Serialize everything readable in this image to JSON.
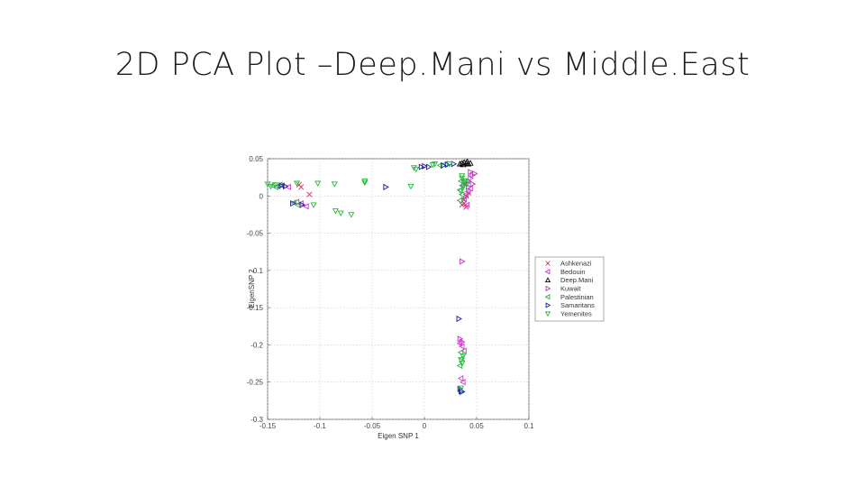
{
  "slide": {
    "title": "2D PCA Plot –Deep.Mani vs Middle.East"
  },
  "chart_data": {
    "type": "scatter",
    "xlabel": "Eigen SNP 1",
    "ylabel": "EigenSNP 2",
    "xlim": [
      -0.15,
      0.1
    ],
    "ylim": [
      -0.3,
      0.05
    ],
    "x_ticks": [
      -0.15,
      -0.1,
      -0.05,
      0,
      0.05,
      0.1
    ],
    "y_ticks": [
      -0.3,
      -0.25,
      -0.2,
      -0.15,
      -0.1,
      -0.05,
      0,
      0.05
    ],
    "x_tick_labels": [
      "-0.15",
      "-0.1",
      "-0.05",
      "0",
      "0.05",
      "0.1"
    ],
    "y_tick_labels": [
      "-0.3",
      "-0.25",
      "-0.2",
      "-0.15",
      "-0.1",
      "-0.05",
      "0",
      "0.05"
    ],
    "grid": true,
    "legend_position": "right",
    "series": [
      {
        "name": "Ashkenazi",
        "marker": "x",
        "color": "#cc3366",
        "points": [
          [
            -0.12,
            0.015
          ],
          [
            -0.118,
            0.012
          ],
          [
            -0.11,
            0.002
          ],
          [
            0.038,
            -0.005
          ],
          [
            0.04,
            0.0
          ],
          [
            0.042,
            0.004
          ],
          [
            0.038,
            -0.01
          ],
          [
            0.04,
            -0.015
          ],
          [
            0.036,
            -0.012
          ]
        ]
      },
      {
        "name": "Bedouin",
        "marker": "<",
        "color": "#cc33cc",
        "points": [
          [
            -0.14,
            0.013
          ],
          [
            -0.136,
            0.014
          ],
          [
            -0.13,
            0.012
          ],
          [
            -0.122,
            -0.008
          ],
          [
            -0.118,
            -0.01
          ],
          [
            -0.113,
            -0.014
          ],
          [
            0.04,
            0.002
          ],
          [
            0.042,
            0.006
          ],
          [
            0.044,
            0.01
          ],
          [
            0.038,
            -0.004
          ],
          [
            0.041,
            -0.012
          ],
          [
            0.034,
            -0.198
          ],
          [
            0.036,
            -0.202
          ],
          [
            0.038,
            -0.208
          ],
          [
            0.035,
            -0.245
          ],
          [
            0.037,
            -0.25
          ]
        ]
      },
      {
        "name": "Deep.Mani",
        "marker": "^",
        "color": "#000000",
        "points": [
          [
            0.034,
            0.043
          ],
          [
            0.036,
            0.044
          ],
          [
            0.038,
            0.045
          ],
          [
            0.04,
            0.044
          ],
          [
            0.042,
            0.043
          ],
          [
            0.044,
            0.044
          ],
          [
            0.037,
            0.042
          ],
          [
            0.041,
            0.046
          ]
        ]
      },
      {
        "name": "Kuwait",
        "marker": ">",
        "color": "#bb33bb",
        "points": [
          [
            0.04,
            0.018
          ],
          [
            0.042,
            0.02
          ],
          [
            0.044,
            0.024
          ],
          [
            0.046,
            0.028
          ],
          [
            0.048,
            0.03
          ],
          [
            0.044,
            0.032
          ],
          [
            0.046,
            0.016
          ],
          [
            0.042,
            0.012
          ],
          [
            0.038,
            0.015
          ],
          [
            0.036,
            -0.088
          ],
          [
            0.034,
            -0.192
          ],
          [
            0.036,
            -0.196
          ]
        ]
      },
      {
        "name": "Palestinian",
        "marker": "<",
        "color": "#33aa55",
        "points": [
          [
            -0.145,
            0.014
          ],
          [
            -0.142,
            0.012
          ],
          [
            -0.138,
            0.015
          ],
          [
            -0.125,
            -0.009
          ],
          [
            -0.121,
            -0.012
          ],
          [
            0.015,
            0.041
          ],
          [
            0.02,
            0.043
          ],
          [
            0.035,
            0.02
          ],
          [
            0.036,
            0.014
          ],
          [
            0.034,
            0.008
          ],
          [
            0.036,
            0.002
          ],
          [
            0.034,
            -0.006
          ],
          [
            0.035,
            -0.21
          ],
          [
            0.036,
            -0.218
          ],
          [
            0.034,
            -0.228
          ]
        ]
      },
      {
        "name": "Samaritans",
        "marker": ">",
        "color": "#1a1a99",
        "points": [
          [
            -0.137,
            0.014
          ],
          [
            -0.133,
            0.013
          ],
          [
            -0.126,
            -0.01
          ],
          [
            -0.117,
            -0.012
          ],
          [
            -0.037,
            0.012
          ],
          [
            -0.003,
            0.039
          ],
          [
            0.0,
            0.04
          ],
          [
            0.004,
            0.039
          ],
          [
            0.018,
            0.041
          ],
          [
            0.022,
            0.042
          ],
          [
            0.028,
            0.043
          ],
          [
            0.033,
            -0.165
          ],
          [
            0.034,
            -0.259
          ],
          [
            0.035,
            -0.262
          ],
          [
            0.036,
            -0.263
          ]
        ]
      },
      {
        "name": "Yemenites",
        "marker": "v",
        "color": "#22bb33",
        "points": [
          [
            -0.15,
            0.016
          ],
          [
            -0.147,
            0.013
          ],
          [
            -0.143,
            0.015
          ],
          [
            -0.122,
            0.017
          ],
          [
            -0.102,
            0.017
          ],
          [
            -0.086,
            0.016
          ],
          [
            -0.057,
            0.018
          ],
          [
            -0.057,
            0.02
          ],
          [
            -0.013,
            0.013
          ],
          [
            -0.08,
            -0.023
          ],
          [
            -0.07,
            -0.025
          ],
          [
            -0.085,
            -0.02
          ],
          [
            -0.106,
            -0.012
          ],
          [
            -0.01,
            0.038
          ],
          [
            -0.008,
            0.036
          ],
          [
            0.008,
            0.042
          ],
          [
            0.01,
            0.043
          ],
          [
            0.024,
            0.043
          ],
          [
            0.036,
            0.024
          ],
          [
            0.038,
            0.018
          ],
          [
            0.037,
            0.012
          ],
          [
            0.035,
            0.006
          ],
          [
            0.039,
            0.02
          ],
          [
            0.041,
            0.016
          ],
          [
            0.036,
            0.027
          ],
          [
            0.035,
            -0.22
          ],
          [
            0.036,
            -0.225
          ],
          [
            0.037,
            -0.215
          ],
          [
            0.035,
            -0.258
          ]
        ]
      }
    ]
  }
}
